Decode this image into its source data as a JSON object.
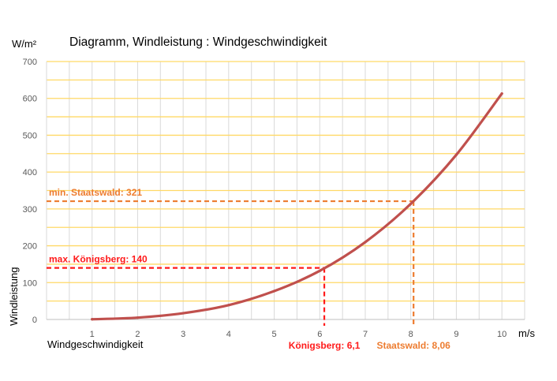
{
  "chart_data": {
    "type": "line",
    "title": "Diagramm, Windleistung :  Windgeschwindigkeit",
    "y_unit": "W/m²",
    "x_unit": "m/s",
    "ylabel": "Windleistung",
    "xlabel": "Windgeschwindigkeit",
    "x_ticks": [
      1,
      2,
      3,
      4,
      5,
      6,
      7,
      8,
      9,
      10
    ],
    "y_ticks": [
      0,
      100,
      200,
      300,
      400,
      500,
      600,
      700
    ],
    "xlim": [
      0,
      10.5
    ],
    "ylim": [
      0,
      700
    ],
    "grid": true,
    "series": [
      {
        "color": "#c0504d",
        "x": [
          1,
          2,
          3,
          4,
          5,
          6,
          7,
          8,
          9,
          10
        ],
        "y": [
          0.6,
          5,
          17,
          39,
          77,
          132,
          210,
          314,
          447,
          613
        ]
      }
    ],
    "markers": [
      {
        "id": "koenigsberg",
        "color": "#ff1a1a",
        "x": 6.1,
        "y": 140,
        "y_label": "max. Königsberg: 140",
        "x_label": "Königsberg: 6,1"
      },
      {
        "id": "staatswald",
        "color": "#ed7d31",
        "x": 8.06,
        "y": 321,
        "y_label": "min. Staatswald: 321",
        "x_label": "Staatswald: 8,06"
      }
    ],
    "colors": {
      "horizontal_grid": "#ffd966",
      "vertical_grid": "#d9d9d9",
      "axis_text": "#595959"
    }
  }
}
